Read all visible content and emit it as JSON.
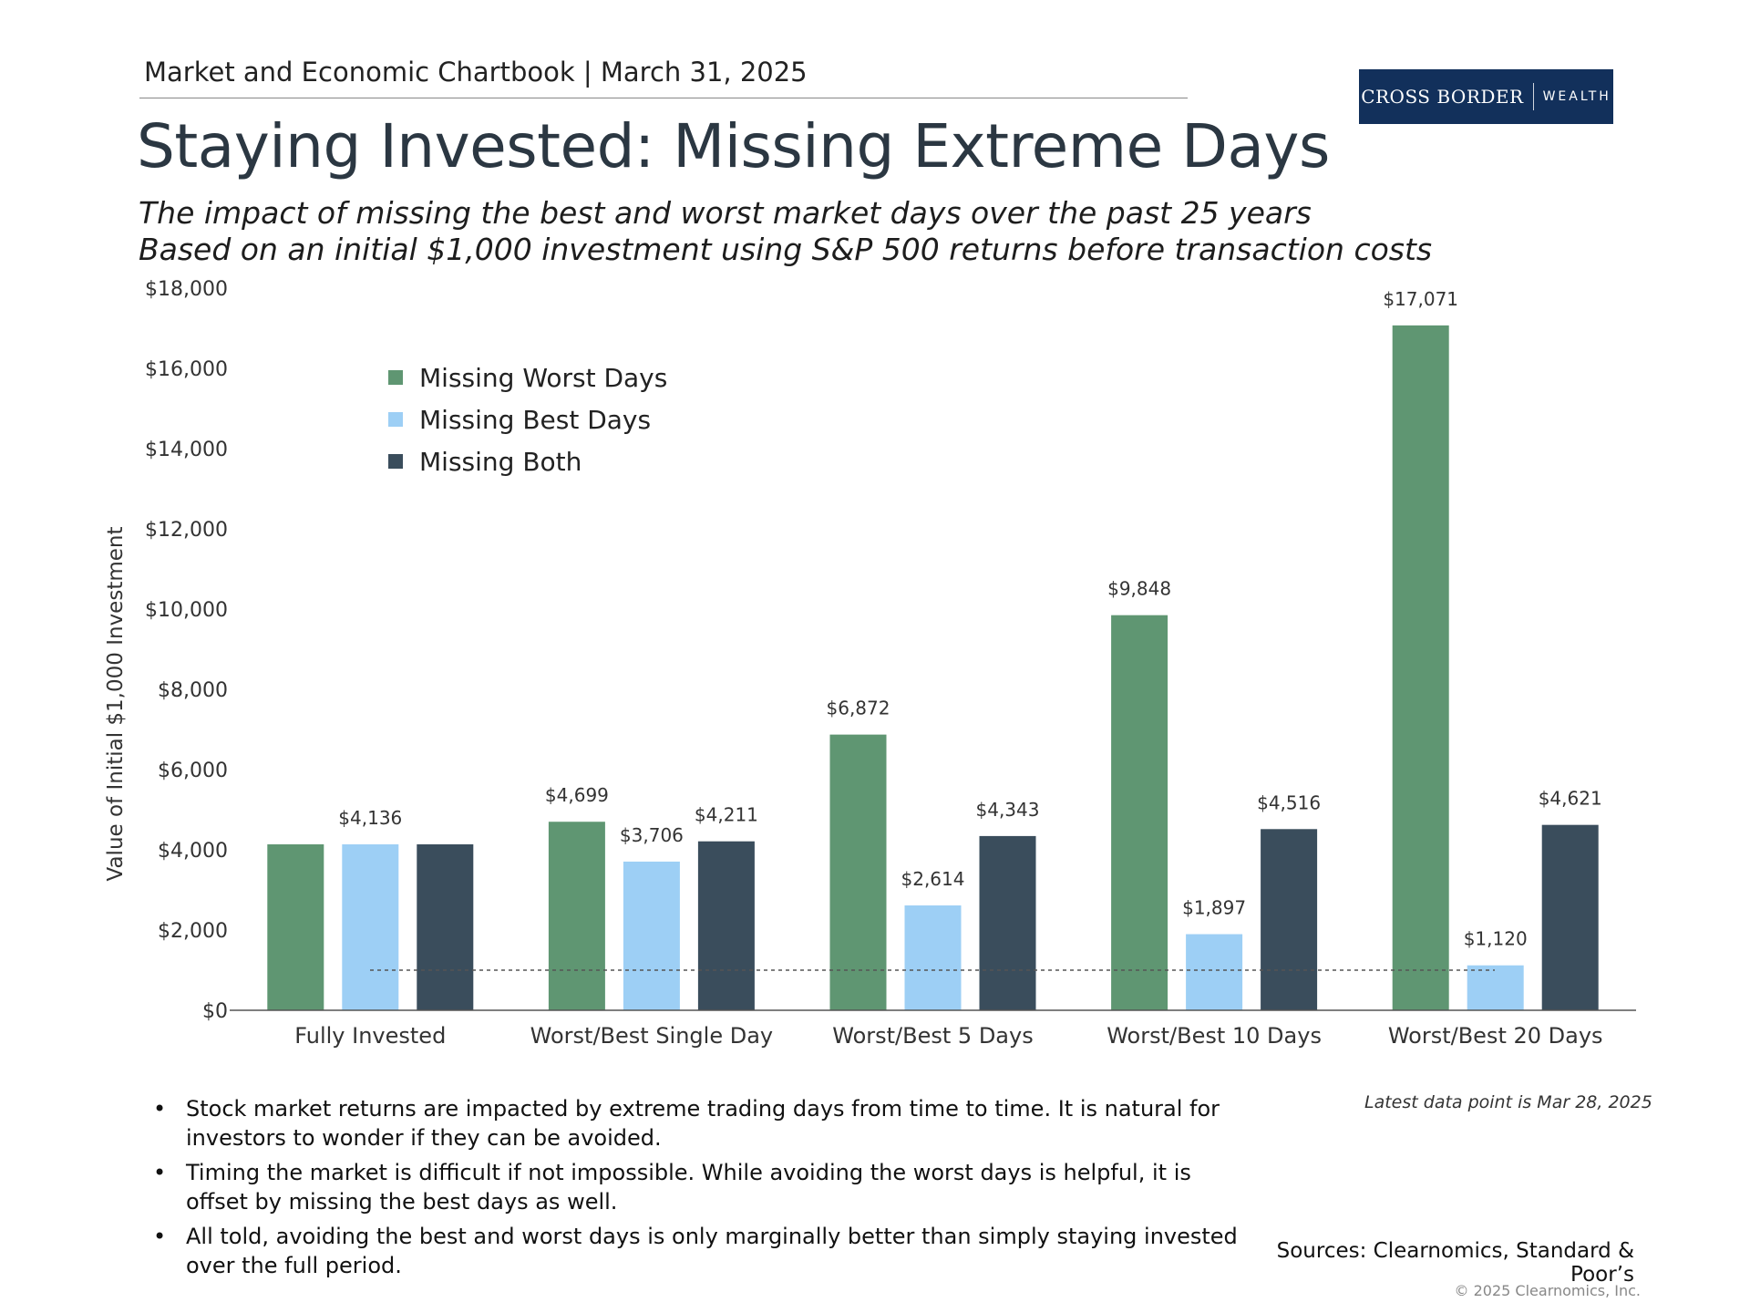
{
  "header": {
    "chartbook": "Market and Economic Chartbook | March 31, 2025",
    "logo_main": "CROSS BORDER",
    "logo_sub": "WEALTH"
  },
  "title": "Staying Invested: Missing Extreme Days",
  "subtitle": [
    "The impact of missing the best and worst market days over the past 25 years",
    "Based on an initial $1,000 investment using S&P 500 returns before transaction costs"
  ],
  "chart_data": {
    "type": "bar",
    "ylabel": "Value of Initial $1,000 Investment",
    "ylim": [
      0,
      18000
    ],
    "yticks": [
      0,
      2000,
      4000,
      6000,
      8000,
      10000,
      12000,
      14000,
      16000,
      18000
    ],
    "ytick_labels": [
      "$0",
      "$2,000",
      "$4,000",
      "$6,000",
      "$8,000",
      "$10,000",
      "$12,000",
      "$14,000",
      "$16,000",
      "$18,000"
    ],
    "categories": [
      "Fully Invested",
      "Worst/Best Single Day",
      "Worst/Best 5 Days",
      "Worst/Best 10 Days",
      "Worst/Best 20 Days"
    ],
    "series": [
      {
        "name": "Missing Worst Days",
        "color": "#5f9672",
        "values": [
          4136,
          4699,
          6872,
          9848,
          17071
        ]
      },
      {
        "name": "Missing Best Days",
        "color": "#9dcff5",
        "values": [
          4136,
          3706,
          2614,
          1897,
          1120
        ]
      },
      {
        "name": "Missing Both",
        "color": "#3a4d5c",
        "values": [
          4136,
          4211,
          4343,
          4516,
          4621
        ]
      }
    ],
    "data_labels": [
      [
        "",
        "$4,699",
        "$6,872",
        "$9,848",
        "$17,071"
      ],
      [
        "$4,136",
        "$3,706",
        "$2,614",
        "$1,897",
        "$1,120"
      ],
      [
        "",
        "$4,211",
        "$4,343",
        "$4,516",
        "$4,621"
      ]
    ],
    "reference_line": {
      "value": 1000,
      "style": "dotted"
    },
    "legend_position": "top-left"
  },
  "note": "Latest data point is Mar 28, 2025",
  "bullets": [
    "Stock market returns are impacted by extreme trading days from time to time. It is natural for investors to wonder if they can be avoided.",
    "Timing the market is difficult if not impossible. While avoiding the worst days is helpful, it is offset by missing the best days as well.",
    "All told, avoiding the best and worst days is only marginally better than simply staying invested over the full period."
  ],
  "sources": "Sources: Clearnomics, Standard & Poor’s",
  "copyright": "© 2025 Clearnomics, Inc."
}
